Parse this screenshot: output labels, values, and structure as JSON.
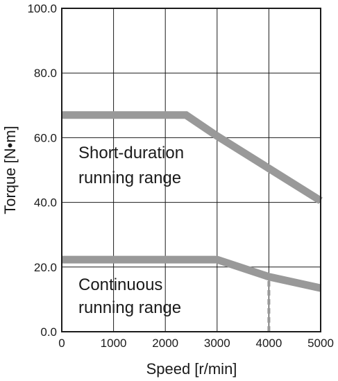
{
  "chart_data": {
    "type": "line",
    "xlabel": "Speed [r/min]",
    "ylabel": "Torque [N•m]",
    "xlim": [
      0,
      5000
    ],
    "ylim": [
      0,
      100
    ],
    "x_ticks": [
      0,
      1000,
      2000,
      3000,
      4000,
      5000
    ],
    "x_tick_labels": [
      "0",
      "1000",
      "2000",
      "3000",
      "4000",
      "5000"
    ],
    "y_ticks": [
      0,
      20,
      40,
      60,
      80,
      100
    ],
    "y_tick_labels": [
      "0.0",
      "20.0",
      "40.0",
      "60.0",
      "80.0",
      "100.0"
    ],
    "grid": true,
    "series": [
      {
        "points": [
          [
            0,
            67
          ],
          [
            2400,
            67
          ],
          [
            3000,
            60.5
          ],
          [
            4000,
            50.5
          ],
          [
            5000,
            40.5
          ]
        ],
        "color": "#999999"
      },
      {
        "points": [
          [
            0,
            22.3
          ],
          [
            3000,
            22.3
          ],
          [
            4000,
            17
          ],
          [
            5000,
            13.5
          ]
        ],
        "color": "#999999"
      }
    ],
    "marker_lines": [
      {
        "x": 4000,
        "y_from": 0,
        "y_to": 17,
        "style": "dashed",
        "color": "#999999"
      }
    ],
    "annotations": [
      {
        "lines": [
          "Short-duration",
          "running range"
        ]
      },
      {
        "lines": [
          "Continuous",
          "running range"
        ]
      }
    ]
  }
}
